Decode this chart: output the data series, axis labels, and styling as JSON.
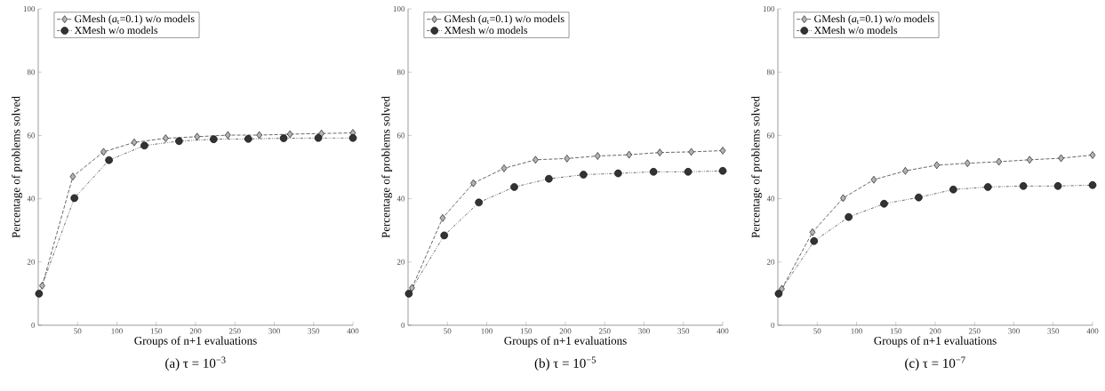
{
  "chart_data": [
    {
      "type": "line",
      "title": "(a) τ = 10$^{−3}$",
      "xlabel": "Groups of n+1 evaluations",
      "ylabel": "Percentage of problems solved",
      "xlim": [
        0,
        400
      ],
      "xticks": [
        50,
        100,
        150,
        200,
        250,
        300,
        350,
        400
      ],
      "ylim": [
        0,
        100
      ],
      "yticks": [
        0,
        20,
        40,
        60,
        80,
        100
      ],
      "grid": false,
      "legend": "top left",
      "series": [
        {
          "name": "GMesh (*a*$_{t}$=0.1) w/o models",
          "color": "#b3b3b3",
          "marker": "diamond",
          "line_style": "dashed",
          "x": [
            5,
            44,
            83,
            122,
            162,
            202,
            241,
            281,
            320,
            360,
            400
          ],
          "values": [
            12.5,
            47,
            54.8,
            57.8,
            59.1,
            59.6,
            60.1,
            60.1,
            60.4,
            60.6,
            60.8
          ]
        },
        {
          "name": "XMesh w/o models",
          "color": "#333333",
          "marker": "circle",
          "line_style": "dashdot",
          "x": [
            1,
            46,
            90,
            135,
            179,
            223,
            267,
            312,
            356,
            400
          ],
          "values": [
            10,
            40.2,
            52.2,
            56.8,
            58.2,
            58.8,
            58.9,
            59.1,
            59.2,
            59.2
          ]
        }
      ]
    },
    {
      "type": "line",
      "title": "(b) τ = 10$^{−5}$",
      "xlabel": "Groups of n+1 evaluations",
      "ylabel": "Percentage of problems solved",
      "xlim": [
        0,
        400
      ],
      "xticks": [
        50,
        100,
        150,
        200,
        250,
        300,
        350,
        400
      ],
      "ylim": [
        0,
        100
      ],
      "yticks": [
        0,
        20,
        40,
        60,
        80,
        100
      ],
      "grid": false,
      "legend": "top left",
      "series": [
        {
          "name": "GMesh (*a*$_{t}$=0.1) w/o models",
          "color": "#b3b3b3",
          "marker": "diamond",
          "line_style": "dashed",
          "x": [
            5,
            44,
            83,
            122,
            162,
            202,
            241,
            281,
            320,
            360,
            400
          ],
          "values": [
            11.8,
            33.9,
            44.9,
            49.6,
            52.3,
            52.7,
            53.5,
            53.9,
            54.6,
            54.8,
            55.2
          ]
        },
        {
          "name": "XMesh w/o models",
          "color": "#333333",
          "marker": "circle",
          "line_style": "dashdot",
          "x": [
            1,
            46,
            90,
            135,
            179,
            223,
            267,
            312,
            356,
            400
          ],
          "values": [
            10,
            28.4,
            38.8,
            43.7,
            46.3,
            47.6,
            48.0,
            48.5,
            48.5,
            48.8
          ]
        }
      ]
    },
    {
      "type": "line",
      "title": "(c) τ = 10$^{−7}$",
      "xlabel": "Groups of n+1 evaluations",
      "ylabel": "Percentage of problems solved",
      "xlim": [
        0,
        400
      ],
      "xticks": [
        50,
        100,
        150,
        200,
        250,
        300,
        350,
        400
      ],
      "ylim": [
        0,
        100
      ],
      "yticks": [
        0,
        20,
        40,
        60,
        80,
        100
      ],
      "grid": false,
      "legend": "top left",
      "series": [
        {
          "name": "GMesh (*a*$_{t}$=0.1) w/o models",
          "color": "#b3b3b3",
          "marker": "diamond",
          "line_style": "dashed",
          "x": [
            5,
            44,
            83,
            122,
            162,
            202,
            241,
            281,
            320,
            360,
            400
          ],
          "values": [
            11.5,
            29.4,
            40.2,
            46.0,
            48.8,
            50.6,
            51.2,
            51.7,
            52.3,
            52.8,
            53.8
          ]
        },
        {
          "name": "XMesh w/o models",
          "color": "#333333",
          "marker": "circle",
          "line_style": "dashdot",
          "x": [
            1,
            46,
            90,
            135,
            179,
            223,
            267,
            312,
            356,
            400
          ],
          "values": [
            10,
            26.6,
            34.2,
            38.4,
            40.4,
            42.9,
            43.7,
            44.0,
            44.0,
            44.3
          ]
        }
      ]
    }
  ]
}
